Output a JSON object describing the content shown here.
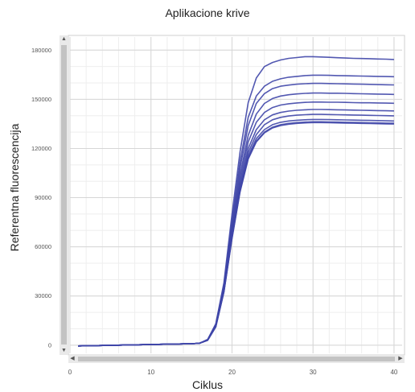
{
  "chart_data": {
    "type": "line",
    "title": "Aplikacione krive",
    "xlabel": "Ciklus",
    "ylabel": "Referentna fluorescencija",
    "xlim": [
      0,
      41
    ],
    "ylim": [
      -5000,
      188000
    ],
    "x_ticks": [
      0,
      10,
      20,
      30,
      40
    ],
    "y_ticks": [
      0,
      30000,
      60000,
      90000,
      120000,
      150000,
      180000
    ],
    "y_tick_labels": [
      "0",
      "30000",
      "60000",
      "90000",
      "120000",
      "150000",
      "180000"
    ],
    "grid": true,
    "legend": "none",
    "line_color": "#3f46a8",
    "x": [
      1,
      2,
      3,
      4,
      5,
      6,
      7,
      8,
      9,
      10,
      11,
      12,
      13,
      14,
      15,
      16,
      17,
      18,
      19,
      20,
      21,
      22,
      23,
      24,
      25,
      26,
      27,
      28,
      29,
      30,
      31,
      32,
      33,
      34,
      35,
      36,
      37,
      38,
      39,
      40
    ],
    "series": [
      {
        "values": [
          -500,
          -400,
          -300,
          -200,
          -100,
          0,
          100,
          200,
          300,
          400,
          500,
          600,
          700,
          800,
          900,
          1200,
          3500,
          13000,
          38000,
          80000,
          118000,
          148000,
          163000,
          170000,
          172500,
          174000,
          175000,
          175500,
          176000,
          176000,
          175800,
          175600,
          175400,
          175200,
          175000,
          174900,
          174800,
          174600,
          174500,
          174300
        ]
      },
      {
        "values": [
          -500,
          -400,
          -300,
          -200,
          -100,
          0,
          100,
          200,
          300,
          400,
          500,
          600,
          700,
          800,
          900,
          1200,
          3400,
          12600,
          36500,
          76000,
          112000,
          139000,
          152000,
          158000,
          161000,
          162500,
          163500,
          164000,
          164500,
          164700,
          164700,
          164600,
          164500,
          164400,
          164300,
          164200,
          164100,
          164000,
          163900,
          163800
        ]
      },
      {
        "values": [
          -500,
          -400,
          -300,
          -200,
          -100,
          0,
          100,
          200,
          300,
          400,
          500,
          600,
          700,
          800,
          900,
          1200,
          3300,
          12300,
          35500,
          73500,
          108000,
          134000,
          147500,
          153500,
          156500,
          158000,
          158700,
          159200,
          159500,
          159700,
          159700,
          159600,
          159500,
          159400,
          159300,
          159200,
          159100,
          159000,
          158900,
          158800
        ]
      },
      {
        "values": [
          -500,
          -400,
          -300,
          -200,
          -100,
          0,
          100,
          200,
          300,
          400,
          500,
          600,
          700,
          800,
          900,
          1200,
          3200,
          12000,
          34800,
          71000,
          104000,
          128000,
          141000,
          147500,
          150500,
          152000,
          152800,
          153300,
          153600,
          153800,
          153800,
          153700,
          153700,
          153600,
          153500,
          153400,
          153300,
          153200,
          153100,
          153000
        ]
      },
      {
        "values": [
          -500,
          -400,
          -300,
          -200,
          -100,
          0,
          100,
          200,
          300,
          400,
          500,
          600,
          700,
          800,
          900,
          1200,
          3200,
          11800,
          34200,
          69500,
          101000,
          124000,
          136000,
          142000,
          145000,
          146500,
          147300,
          147800,
          148100,
          148300,
          148300,
          148200,
          148200,
          148100,
          148000,
          147900,
          147900,
          147800,
          147700,
          147600
        ]
      },
      {
        "values": [
          -500,
          -400,
          -300,
          -200,
          -100,
          0,
          100,
          200,
          300,
          400,
          500,
          600,
          700,
          800,
          900,
          1200,
          3100,
          11600,
          33700,
          68000,
          98500,
          120000,
          131500,
          137500,
          140500,
          142000,
          142800,
          143300,
          143600,
          143800,
          143800,
          143700,
          143600,
          143500,
          143400,
          143300,
          143200,
          143100,
          143000,
          142900
        ]
      },
      {
        "values": [
          -500,
          -400,
          -300,
          -200,
          -100,
          0,
          100,
          200,
          300,
          400,
          500,
          600,
          700,
          800,
          900,
          1200,
          3100,
          11500,
          33300,
          67000,
          96500,
          117500,
          128500,
          134500,
          137500,
          139000,
          139800,
          140300,
          140600,
          140800,
          140800,
          140700,
          140600,
          140500,
          140400,
          140300,
          140200,
          140100,
          140000,
          139900
        ]
      },
      {
        "values": [
          -500,
          -400,
          -300,
          -200,
          -100,
          0,
          100,
          200,
          300,
          400,
          500,
          600,
          700,
          800,
          900,
          1200,
          3000,
          11300,
          32800,
          66000,
          95000,
          115500,
          126000,
          131500,
          134500,
          136000,
          136800,
          137200,
          137500,
          137700,
          137700,
          137600,
          137500,
          137400,
          137300,
          137200,
          137100,
          137000,
          136900,
          136800
        ]
      },
      {
        "values": [
          -500,
          -400,
          -300,
          -200,
          -100,
          0,
          100,
          200,
          300,
          400,
          500,
          600,
          700,
          800,
          900,
          1200,
          3000,
          11200,
          32500,
          65500,
          94000,
          114000,
          124500,
          130000,
          133000,
          134500,
          135300,
          135800,
          136100,
          136300,
          136300,
          136200,
          136100,
          136000,
          135900,
          135800,
          135700,
          135600,
          135500,
          135400
        ]
      },
      {
        "values": [
          -500,
          -400,
          -300,
          -200,
          -100,
          0,
          100,
          200,
          300,
          400,
          500,
          600,
          700,
          800,
          900,
          1200,
          3000,
          11100,
          32300,
          65000,
          93500,
          113500,
          124000,
          129500,
          132500,
          134000,
          134800,
          135300,
          135600,
          135800,
          135800,
          135700,
          135600,
          135500,
          135400,
          135300,
          135200,
          135100,
          135000,
          134900
        ]
      }
    ]
  }
}
